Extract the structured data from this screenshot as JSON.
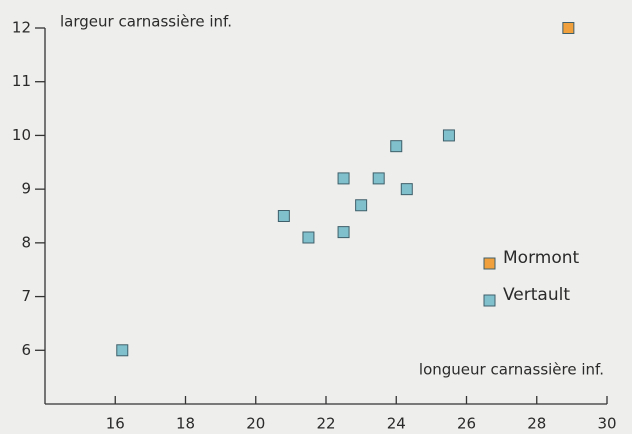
{
  "chart_data": {
    "type": "scatter",
    "y_label": "largeur carnassière inf.",
    "x_label": "longueur carnassière inf.",
    "xlim": [
      14,
      30
    ],
    "xticks": [
      16,
      18,
      20,
      22,
      24,
      26,
      28,
      30
    ],
    "ylim": [
      5,
      12
    ],
    "yticks": [
      6,
      7,
      8,
      9,
      10,
      11,
      12
    ],
    "series": [
      {
        "name": "Mormont",
        "color": "#f0a03c",
        "x": [
          28.9
        ],
        "values": [
          12.0
        ]
      },
      {
        "name": "Vertault",
        "color": "#7fc0cc",
        "x": [
          16.2,
          20.8,
          21.5,
          22.5,
          22.5,
          23.0,
          23.5,
          24.0,
          24.3,
          25.5
        ],
        "values": [
          6.0,
          8.5,
          8.1,
          9.2,
          8.2,
          8.7,
          9.2,
          9.8,
          9.0,
          10.0
        ]
      }
    ]
  }
}
